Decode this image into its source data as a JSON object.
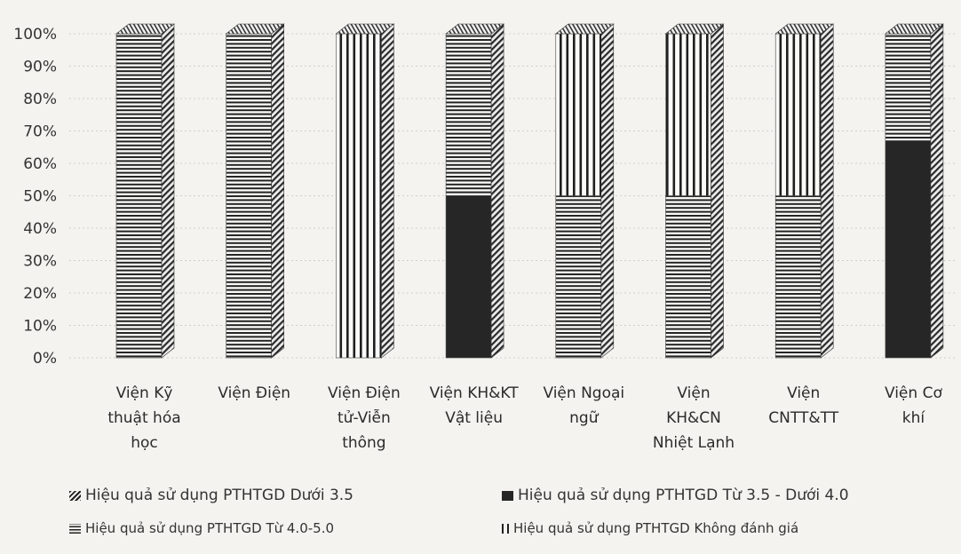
{
  "chart_data": {
    "type": "bar",
    "stacked": true,
    "percent_stacked": true,
    "categories": [
      "Viện Kỹ thuật hóa học",
      "Viện Điện",
      "Viện Điện tử-Viễn thông",
      "Viện KH&KT Vật liệu",
      "Viện Ngoại ngữ",
      "Viện KH&CN Nhiệt Lạnh",
      "Viện CNTT&TT",
      "Viện Cơ khí"
    ],
    "category_lines": [
      [
        "Viện Kỹ",
        "thuật hóa",
        "học"
      ],
      [
        "Viện Điện"
      ],
      [
        "Viện Điện",
        "tử-Viễn",
        "thông"
      ],
      [
        "Viện KH&KT",
        "Vật liệu"
      ],
      [
        "Viện Ngoại",
        "ngữ"
      ],
      [
        "Viện",
        "KH&CN",
        "Nhiệt Lạnh"
      ],
      [
        "Viện",
        "CNTT&TT"
      ],
      [
        "Viện Cơ",
        "khí"
      ]
    ],
    "series": [
      {
        "name": "Hiệu quả sử dụng PTHTGD Dưới 3.5",
        "values": [
          0,
          0,
          0,
          0,
          0,
          0,
          0,
          0
        ],
        "pattern": "diagonal"
      },
      {
        "name": "Hiệu quả sử dụng PTHTGD Từ 3.5 - Dưới 4.0",
        "values": [
          0,
          0,
          0,
          50,
          0,
          0,
          0,
          67
        ],
        "pattern": "solid"
      },
      {
        "name": "Hiệu quả sử dụng PTHTGD Từ 4.0-5.0",
        "values": [
          100,
          100,
          0,
          50,
          50,
          50,
          50,
          33
        ],
        "pattern": "horizontal"
      },
      {
        "name": "Hiệu quả sử dụng PTHTGD Không đánh giá",
        "values": [
          0,
          0,
          100,
          0,
          50,
          50,
          50,
          0
        ],
        "pattern": "vertical"
      }
    ],
    "y_ticks": [
      "0%",
      "10%",
      "20%",
      "30%",
      "40%",
      "50%",
      "60%",
      "70%",
      "80%",
      "90%",
      "100%"
    ],
    "ylim": [
      0,
      100
    ],
    "grid": true,
    "legend_position": "bottom",
    "colors": {
      "ink": "#262626",
      "grid": "#cfcfcf",
      "background": "#f4f3ef"
    }
  }
}
